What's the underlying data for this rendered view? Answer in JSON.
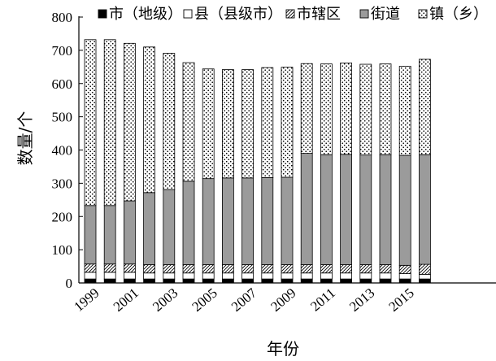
{
  "chart_data": {
    "type": "bar",
    "stacked": true,
    "title": "",
    "xlabel": "年份",
    "ylabel": "数量/个",
    "ylim": [
      0,
      800
    ],
    "yticks": [
      0,
      100,
      200,
      300,
      400,
      500,
      600,
      700,
      800
    ],
    "categories": [
      "1999",
      "2000",
      "2001",
      "2002",
      "2003",
      "2004",
      "2005",
      "2006",
      "2007",
      "2008",
      "2009",
      "2010",
      "2011",
      "2012",
      "2013",
      "2014",
      "2015",
      "2016"
    ],
    "xtick_labels": [
      "1999",
      "2001",
      "2003",
      "2005",
      "2007",
      "2009",
      "2011",
      "2013",
      "2015"
    ],
    "legend_position": "top",
    "series": [
      {
        "name": "市（地级）",
        "pattern": "solid-black",
        "values": [
          12,
          12,
          12,
          12,
          12,
          12,
          12,
          12,
          12,
          12,
          12,
          12,
          12,
          12,
          12,
          12,
          12,
          12
        ]
      },
      {
        "name": "县（县级市）",
        "pattern": "white",
        "values": [
          20,
          20,
          20,
          18,
          18,
          18,
          18,
          18,
          18,
          18,
          18,
          18,
          18,
          18,
          18,
          18,
          16,
          14
        ]
      },
      {
        "name": "市辖区",
        "pattern": "hatch",
        "values": [
          25,
          25,
          25,
          25,
          25,
          25,
          25,
          25,
          25,
          25,
          25,
          25,
          25,
          25,
          25,
          25,
          25,
          30
        ]
      },
      {
        "name": "街道",
        "pattern": "gray",
        "values": [
          176,
          176,
          190,
          217,
          226,
          251,
          259,
          261,
          261,
          262,
          263,
          335,
          331,
          332,
          330,
          331,
          331,
          330
        ]
      },
      {
        "name": "镇（乡）",
        "pattern": "dots",
        "values": [
          499,
          499,
          474,
          438,
          410,
          357,
          330,
          326,
          326,
          331,
          331,
          270,
          273,
          275,
          273,
          273,
          268,
          287
        ]
      }
    ]
  }
}
